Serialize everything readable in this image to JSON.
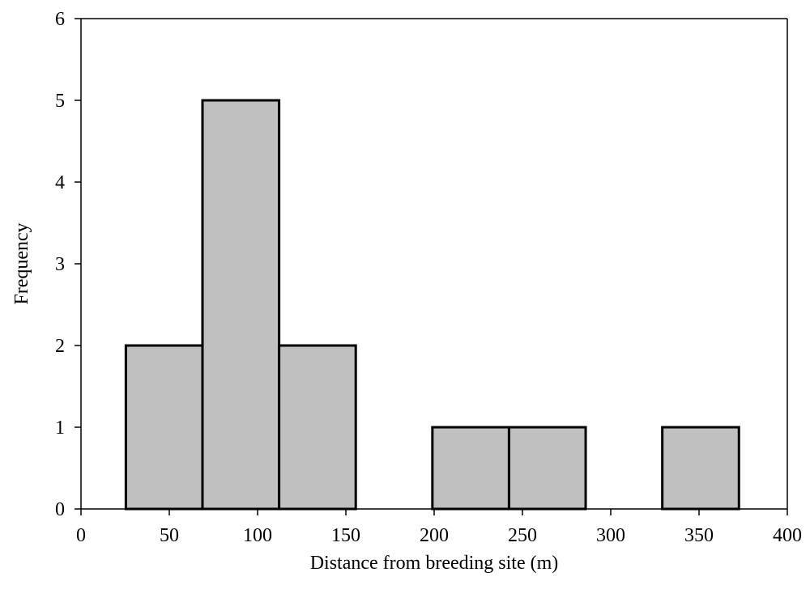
{
  "chart_data": {
    "type": "bar",
    "subtype": "histogram",
    "title": "",
    "xlabel": "Distance from breeding site (m)",
    "ylabel": "Frequency",
    "xlim": [
      0,
      400
    ],
    "ylim": [
      0,
      6
    ],
    "xticks": [
      0,
      50,
      100,
      150,
      200,
      250,
      300,
      350,
      400
    ],
    "yticks": [
      0,
      1,
      2,
      3,
      4,
      5,
      6
    ],
    "grid": false,
    "legend": "none",
    "bins": [
      {
        "start": 25.4,
        "end": 68.8,
        "count": 2
      },
      {
        "start": 68.8,
        "end": 112.2,
        "count": 5
      },
      {
        "start": 112.2,
        "end": 155.6,
        "count": 2
      },
      {
        "start": 155.6,
        "end": 199.0,
        "count": 0
      },
      {
        "start": 199.0,
        "end": 242.4,
        "count": 1
      },
      {
        "start": 242.4,
        "end": 285.8,
        "count": 1
      },
      {
        "start": 285.8,
        "end": 329.2,
        "count": 0
      },
      {
        "start": 329.2,
        "end": 372.6,
        "count": 1
      }
    ],
    "bar_color": "#c0c0c0",
    "edge_color": "#000000"
  }
}
